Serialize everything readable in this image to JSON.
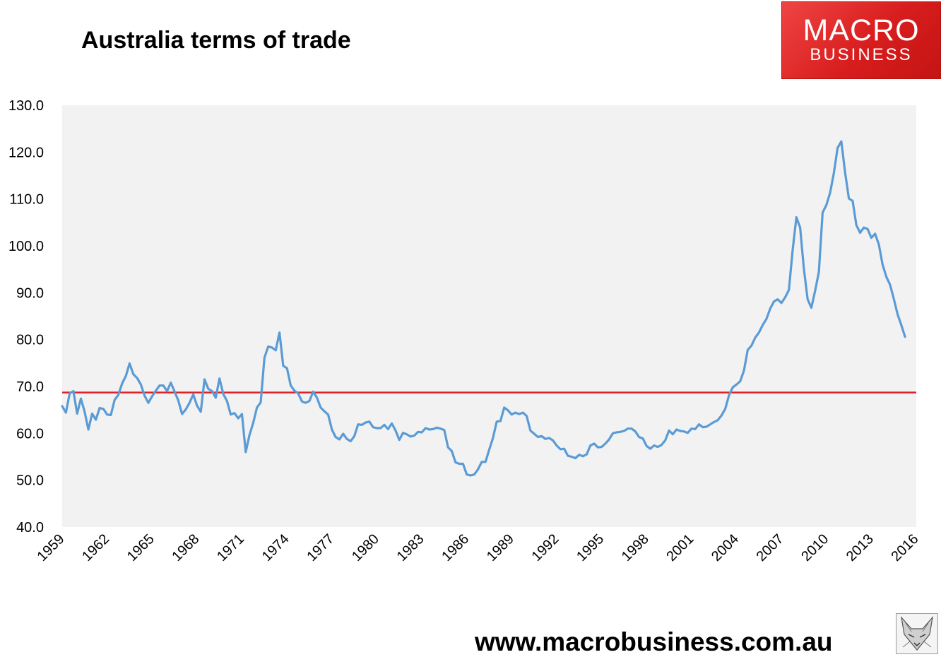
{
  "title": "Australia terms of trade",
  "logo": {
    "top": "MACRO",
    "bottom": "BUSINESS"
  },
  "website": "www.macrobusiness.com.au",
  "colors": {
    "series": "#5b9bd5",
    "average": "#e0202a",
    "plot_bg": "#f2f2f2",
    "logo_red": "#e02a2a"
  },
  "chart_data": {
    "type": "line",
    "title": "Australia terms of trade",
    "xlabel": "",
    "ylabel": "",
    "ylim": [
      40,
      130
    ],
    "xlim": [
      1959,
      2016
    ],
    "y_ticks": [
      "40.0",
      "50.0",
      "60.0",
      "70.0",
      "80.0",
      "90.0",
      "100.0",
      "110.0",
      "120.0",
      "130.0"
    ],
    "x_ticks": [
      "1959",
      "1962",
      "1965",
      "1968",
      "1971",
      "1974",
      "1977",
      "1980",
      "1983",
      "1986",
      "1989",
      "1992",
      "1995",
      "1998",
      "2001",
      "2004",
      "2007",
      "2010",
      "2013",
      "2016"
    ],
    "grid": false,
    "legend": "none",
    "average_line": 68.7,
    "series": [
      {
        "x": [
          1959.0,
          1959.25,
          1959.5,
          1959.75,
          1960.0,
          1960.25,
          1960.5,
          1960.75,
          1961.0,
          1961.25,
          1961.5,
          1961.75,
          1962.0,
          1962.25,
          1962.5,
          1962.75,
          1963.0,
          1963.25,
          1963.5,
          1963.75,
          1964.0,
          1964.25,
          1964.5,
          1964.75,
          1965.0,
          1965.25,
          1965.5,
          1965.75,
          1966.0,
          1966.25,
          1966.5,
          1966.75,
          1967.0,
          1967.25,
          1967.5,
          1967.75,
          1968.0,
          1968.25,
          1968.5,
          1968.75,
          1969.0,
          1969.25,
          1969.5,
          1969.75,
          1970.0,
          1970.25,
          1970.5,
          1970.75,
          1971.0,
          1971.25,
          1971.5,
          1971.75,
          1972.0,
          1972.25,
          1972.5,
          1972.75,
          1973.0,
          1973.25,
          1973.5,
          1973.75,
          1974.0,
          1974.25,
          1974.5,
          1974.75,
          1975.0,
          1975.25,
          1975.5,
          1975.75,
          1976.0,
          1976.25,
          1976.5,
          1976.75,
          1977.0,
          1977.25,
          1977.5,
          1977.75,
          1978.0,
          1978.25,
          1978.5,
          1978.75,
          1979.0,
          1979.25,
          1979.5,
          1979.75,
          1980.0,
          1980.25,
          1980.5,
          1980.75,
          1981.0,
          1981.25,
          1981.5,
          1981.75,
          1982.0,
          1982.25,
          1982.5,
          1982.75,
          1983.0,
          1983.25,
          1983.5,
          1983.75,
          1984.0,
          1984.25,
          1984.5,
          1984.75,
          1985.0,
          1985.25,
          1985.5,
          1985.75,
          1986.0,
          1986.25,
          1986.5,
          1986.75,
          1987.0,
          1987.25,
          1987.5,
          1987.75,
          1988.0,
          1988.25,
          1988.5,
          1988.75,
          1989.0,
          1989.25,
          1989.5,
          1989.75,
          1990.0,
          1990.25,
          1990.5,
          1990.75,
          1991.0,
          1991.25,
          1991.5,
          1991.75,
          1992.0,
          1992.25,
          1992.5,
          1992.75,
          1993.0,
          1993.25,
          1993.5,
          1993.75,
          1994.0,
          1994.25,
          1994.5,
          1994.75,
          1995.0,
          1995.25,
          1995.5,
          1995.75,
          1996.0,
          1996.25,
          1996.5,
          1996.75,
          1997.0,
          1997.25,
          1997.5,
          1997.75,
          1998.0,
          1998.25,
          1998.5,
          1998.75,
          1999.0,
          1999.25,
          1999.5,
          1999.75,
          2000.0,
          2000.25,
          2000.5,
          2000.75,
          2001.0,
          2001.25,
          2001.5,
          2001.75,
          2002.0,
          2002.25,
          2002.5,
          2002.75,
          2003.0,
          2003.25,
          2003.5,
          2003.75,
          2004.0,
          2004.25,
          2004.5,
          2004.75,
          2005.0,
          2005.25,
          2005.5,
          2005.75,
          2006.0,
          2006.25,
          2006.5,
          2006.75,
          2007.0,
          2007.25,
          2007.5,
          2007.75,
          2008.0,
          2008.25,
          2008.5,
          2008.75,
          2009.0,
          2009.25,
          2009.5,
          2009.75,
          2010.0,
          2010.25,
          2010.5,
          2010.75,
          2011.0,
          2011.25,
          2011.5,
          2011.75,
          2012.0,
          2012.25,
          2012.5,
          2012.75,
          2013.0,
          2013.25,
          2013.5,
          2013.75,
          2014.0,
          2014.25,
          2014.5,
          2014.75,
          2015.0,
          2015.25
        ],
        "values": [
          65.8,
          64.4,
          68.5,
          69.0,
          64.2,
          67.4,
          64.6,
          60.8,
          64.2,
          62.9,
          65.4,
          65.2,
          64.0,
          63.9,
          67.1,
          68.2,
          70.6,
          72.2,
          74.9,
          72.6,
          71.8,
          70.4,
          68.0,
          66.5,
          67.9,
          69.1,
          70.2,
          70.2,
          69.0,
          70.8,
          68.9,
          67.0,
          64.1,
          65.1,
          66.5,
          68.3,
          65.9,
          64.6,
          71.5,
          69.5,
          69.0,
          67.6,
          71.7,
          68.4,
          66.9,
          64.0,
          64.3,
          63.2,
          64.1,
          56.0,
          59.6,
          62.2,
          65.5,
          66.6,
          76.1,
          78.5,
          78.3,
          77.7,
          81.5,
          74.4,
          73.9,
          70.2,
          69.1,
          68.5,
          66.8,
          66.5,
          66.9,
          68.9,
          67.6,
          65.5,
          64.7,
          64.0,
          60.8,
          59.2,
          58.7,
          59.9,
          58.8,
          58.3,
          59.4,
          61.9,
          61.8,
          62.3,
          62.5,
          61.3,
          61.1,
          61.1,
          61.8,
          60.9,
          62.1,
          60.6,
          58.6,
          60.1,
          59.8,
          59.3,
          59.5,
          60.3,
          60.2,
          61.1,
          60.8,
          60.9,
          61.2,
          61.0,
          60.7,
          57.0,
          56.2,
          53.8,
          53.5,
          53.5,
          51.2,
          51.0,
          51.2,
          52.3,
          53.9,
          53.9,
          56.5,
          59.0,
          62.5,
          62.6,
          65.5,
          64.9,
          64.0,
          64.4,
          64.1,
          64.4,
          63.7,
          60.6,
          59.9,
          59.2,
          59.4,
          58.8,
          59.0,
          58.5,
          57.4,
          56.6,
          56.7,
          55.2,
          55.0,
          54.7,
          55.4,
          55.1,
          55.5,
          57.4,
          57.8,
          57.0,
          57.1,
          57.8,
          58.7,
          60.0,
          60.2,
          60.3,
          60.5,
          61.0,
          61.0,
          60.4,
          59.2,
          58.9,
          57.3,
          56.7,
          57.4,
          57.1,
          57.5,
          58.5,
          60.6,
          59.8,
          60.8,
          60.5,
          60.4,
          60.1,
          61.0,
          60.9,
          61.9,
          61.3,
          61.4,
          61.9,
          62.4,
          62.8,
          63.8,
          65.2,
          68.1,
          69.8,
          70.4,
          71.1,
          73.4,
          77.8,
          78.7,
          80.4,
          81.5,
          83.1,
          84.4,
          86.6,
          88.1,
          88.6,
          87.8,
          89.0,
          90.6,
          99.1,
          106.1,
          103.9,
          95.1,
          88.6,
          86.8,
          90.4,
          94.4,
          107.1,
          108.7,
          111.3,
          115.5,
          120.9,
          122.3,
          115.6,
          110.1,
          109.6,
          104.4,
          102.8,
          103.9,
          103.6,
          101.7,
          102.6,
          100.3,
          96.0,
          93.4,
          91.7,
          88.7,
          85.4,
          83.1,
          80.6
        ]
      }
    ]
  }
}
